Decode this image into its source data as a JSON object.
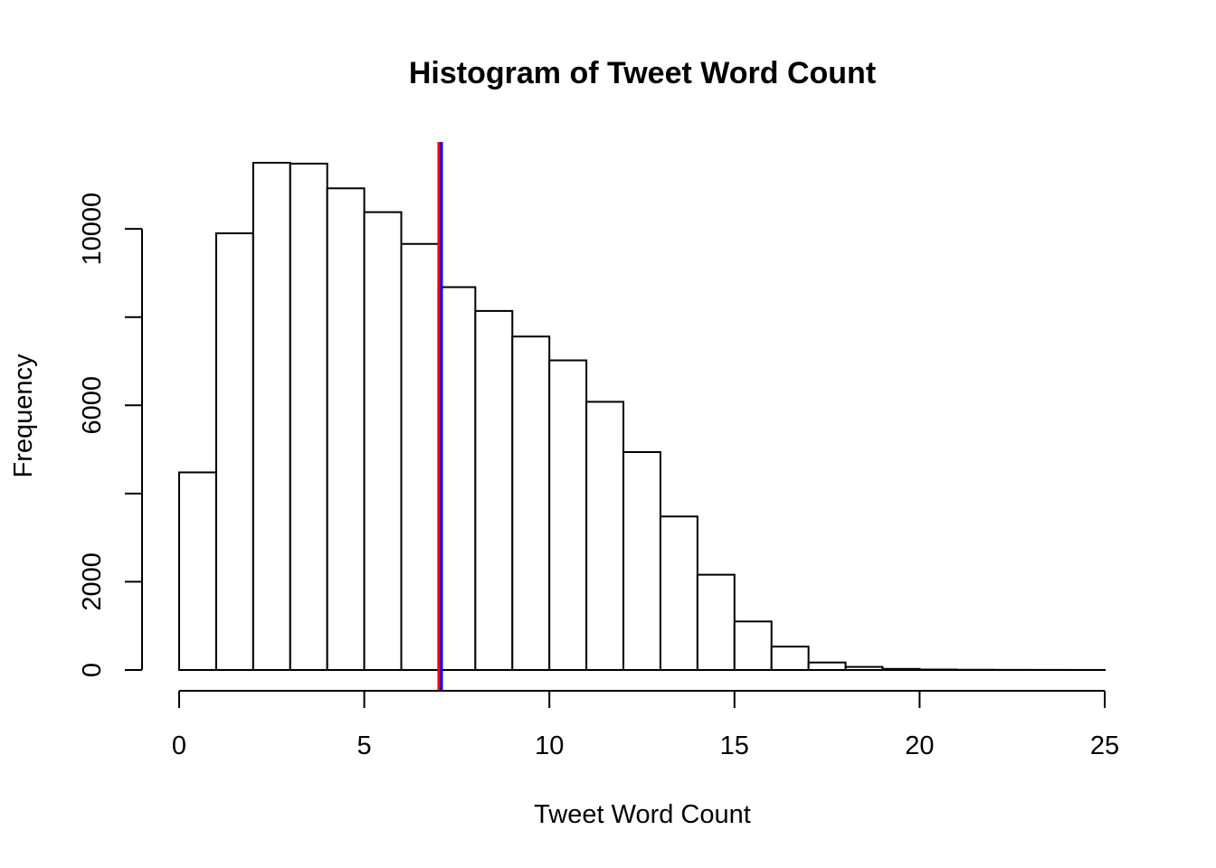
{
  "chart_data": {
    "type": "bar",
    "title": "Histogram of Tweet Word Count",
    "xlabel": "Tweet Word Count",
    "ylabel": "Frequency",
    "bin_edges": [
      0,
      1,
      2,
      3,
      4,
      5,
      6,
      7,
      8,
      9,
      10,
      11,
      12,
      13,
      14,
      15,
      16,
      17,
      18,
      19,
      20,
      21,
      22,
      23,
      24,
      25
    ],
    "values": [
      4480,
      9900,
      11500,
      11480,
      10920,
      10380,
      9660,
      8680,
      8140,
      7560,
      7020,
      6080,
      4940,
      3480,
      2160,
      1100,
      530,
      170,
      70,
      25,
      10,
      5,
      3,
      2,
      1
    ],
    "xlim": [
      0,
      25
    ],
    "ylim": [
      0,
      11500
    ],
    "x_ticks": [
      0,
      5,
      10,
      15,
      20,
      25
    ],
    "y_ticks": [
      0,
      2000,
      4000,
      6000,
      8000,
      10000
    ],
    "y_tick_labels": [
      "0",
      "2000",
      "",
      "6000",
      "",
      "10000"
    ],
    "vlines": [
      {
        "x": 7.05,
        "color": "#ff0000"
      },
      {
        "x": 7.05,
        "color": "#0000ff"
      }
    ],
    "grid": false
  }
}
